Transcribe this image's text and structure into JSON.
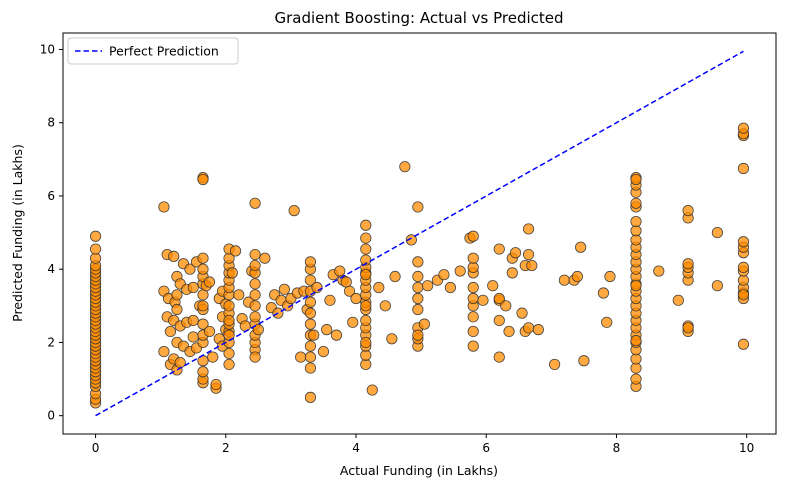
{
  "chart_data": {
    "type": "scatter",
    "title": "Gradient Boosting: Actual vs Predicted",
    "xlabel": "Actual Funding (in Lakhs)",
    "ylabel": "Predicted Funding (in Lakhs)",
    "xlim": [
      -0.5,
      10.45
    ],
    "ylim": [
      -0.5,
      10.45
    ],
    "xticks": [
      0,
      2,
      4,
      6,
      8,
      10
    ],
    "yticks": [
      0,
      2,
      4,
      6,
      8,
      10
    ],
    "grid": false,
    "legend_position": "top-left",
    "colors": {
      "points_fill": "#ff8c00",
      "points_edge": "#333333",
      "reference_line": "#0000ff"
    },
    "reference_line": {
      "name": "Perfect Prediction",
      "style": "dashed",
      "x": [
        0,
        9.95
      ],
      "y": [
        0,
        9.95
      ]
    },
    "series": [
      {
        "x": [
          0,
          0,
          0,
          0,
          0,
          0,
          0,
          0,
          0,
          0,
          0,
          0,
          0,
          0,
          0,
          0,
          0,
          0,
          0,
          0,
          0,
          0,
          0,
          0,
          0,
          0,
          0,
          0,
          0,
          0,
          0,
          0,
          0,
          0,
          0,
          0,
          0,
          0,
          0,
          0,
          1.05,
          1.05,
          1.05,
          1.1,
          1.1,
          1.12,
          1.15,
          1.15,
          1.2,
          1.2,
          1.2,
          1.22,
          1.25,
          1.25,
          1.25,
          1.25,
          1.25,
          1.3,
          1.3,
          1.3,
          1.35,
          1.35,
          1.4,
          1.4,
          1.45,
          1.45,
          1.5,
          1.5,
          1.5,
          1.55,
          1.55,
          1.6,
          1.65,
          1.65,
          1.65,
          1.65,
          1.65,
          1.65,
          1.65,
          1.65,
          1.65,
          1.65,
          1.65,
          1.65,
          1.65,
          1.65,
          1.65,
          1.65,
          1.7,
          1.75,
          1.75,
          1.8,
          1.85,
          1.85,
          1.9,
          1.9,
          1.95,
          1.95,
          1.95,
          2.0,
          2.0,
          2.05,
          2.05,
          2.05,
          2.05,
          2.05,
          2.05,
          2.05,
          2.05,
          2.05,
          2.05,
          2.05,
          2.05,
          2.05,
          2.05,
          2.05,
          2.05,
          2.1,
          2.15,
          2.2,
          2.25,
          2.3,
          2.35,
          2.4,
          2.45,
          2.45,
          2.45,
          2.45,
          2.45,
          2.45,
          2.45,
          2.45,
          2.45,
          2.45,
          2.45,
          2.45,
          2.45,
          2.5,
          2.6,
          2.7,
          2.75,
          2.8,
          2.85,
          2.9,
          2.95,
          3.0,
          3.05,
          3.1,
          3.15,
          3.2,
          3.25,
          3.3,
          3.3,
          3.3,
          3.3,
          3.3,
          3.3,
          3.3,
          3.3,
          3.3,
          3.3,
          3.3,
          3.3,
          3.35,
          3.4,
          3.5,
          3.55,
          3.6,
          3.65,
          3.7,
          3.75,
          3.8,
          3.85,
          3.9,
          3.95,
          4.0,
          4.15,
          4.15,
          4.15,
          4.15,
          4.15,
          4.15,
          4.15,
          4.15,
          4.15,
          4.15,
          4.15,
          4.15,
          4.15,
          4.15,
          4.15,
          4.15,
          4.15,
          4.15,
          4.15,
          4.15,
          4.25,
          4.35,
          4.45,
          4.55,
          4.6,
          4.75,
          4.85,
          4.95,
          4.95,
          4.95,
          4.95,
          4.95,
          4.95,
          4.95,
          4.95,
          4.95,
          4.95,
          5.05,
          5.1,
          5.25,
          5.35,
          5.45,
          5.6,
          5.75,
          5.8,
          5.8,
          5.8,
          5.8,
          5.8,
          5.8,
          5.8,
          5.8,
          5.8,
          5.8,
          5.95,
          6.1,
          6.2,
          6.2,
          6.2,
          6.2,
          6.2,
          6.3,
          6.35,
          6.4,
          6.4,
          6.45,
          6.55,
          6.6,
          6.6,
          6.65,
          6.65,
          6.65,
          6.7,
          6.8,
          7.05,
          7.2,
          7.35,
          7.4,
          7.45,
          7.5,
          7.8,
          7.85,
          7.9,
          8.3,
          8.3,
          8.3,
          8.3,
          8.3,
          8.3,
          8.3,
          8.3,
          8.3,
          8.3,
          8.3,
          8.3,
          8.3,
          8.3,
          8.3,
          8.3,
          8.3,
          8.3,
          8.3,
          8.3,
          8.3,
          8.3,
          8.3,
          8.3,
          8.3,
          8.3,
          8.3,
          8.3,
          8.3,
          8.3,
          8.65,
          8.95,
          9.1,
          9.1,
          9.1,
          9.1,
          9.1,
          9.1,
          9.1,
          9.1,
          9.1,
          9.55,
          9.55,
          9.95,
          9.95,
          9.95,
          9.95,
          9.95,
          9.95,
          9.95,
          9.95,
          9.95,
          9.95,
          9.95,
          9.95,
          9.95,
          9.95,
          9.95
        ],
        "y": [
          0.35,
          0.45,
          0.6,
          0.8,
          0.9,
          1.0,
          1.1,
          1.2,
          1.3,
          1.4,
          1.5,
          1.6,
          1.7,
          1.8,
          1.9,
          2.0,
          2.1,
          2.2,
          2.3,
          2.4,
          2.5,
          2.6,
          2.7,
          2.8,
          2.9,
          3.0,
          3.1,
          3.2,
          3.3,
          3.4,
          3.5,
          3.6,
          3.7,
          3.8,
          3.9,
          4.0,
          4.1,
          4.3,
          4.55,
          4.9,
          5.7,
          3.4,
          1.75,
          2.7,
          4.4,
          3.2,
          1.4,
          2.3,
          4.35,
          2.6,
          1.55,
          3.1,
          3.8,
          3.3,
          2.0,
          1.25,
          2.9,
          3.6,
          1.45,
          2.45,
          4.15,
          1.9,
          2.55,
          3.45,
          4.0,
          1.75,
          2.15,
          3.5,
          2.6,
          1.85,
          4.2,
          3.0,
          6.5,
          6.45,
          0.9,
          1.0,
          1.5,
          2.0,
          2.2,
          2.5,
          2.9,
          3.3,
          3.6,
          3.8,
          4.0,
          4.3,
          1.2,
          3.0,
          3.55,
          2.3,
          3.65,
          1.6,
          0.75,
          0.85,
          3.2,
          2.1,
          2.7,
          1.9,
          3.4,
          3.05,
          2.35,
          1.4,
          1.7,
          2.0,
          2.3,
          2.5,
          2.8,
          3.0,
          3.3,
          3.5,
          3.7,
          3.9,
          4.1,
          4.3,
          4.55,
          2.2,
          2.6,
          3.9,
          4.5,
          3.3,
          2.65,
          2.45,
          3.1,
          3.95,
          5.8,
          1.8,
          2.0,
          2.2,
          2.5,
          2.7,
          3.0,
          3.3,
          3.6,
          3.9,
          4.1,
          4.4,
          1.6,
          2.35,
          4.3,
          2.95,
          3.3,
          2.8,
          3.15,
          3.45,
          3.0,
          3.2,
          5.6,
          3.35,
          1.6,
          3.4,
          2.9,
          0.5,
          1.3,
          1.6,
          1.9,
          2.2,
          2.5,
          2.8,
          3.1,
          3.4,
          3.7,
          4.0,
          4.2,
          2.2,
          3.5,
          1.75,
          2.35,
          3.15,
          3.85,
          2.2,
          3.95,
          3.7,
          3.65,
          3.4,
          2.55,
          3.2,
          1.4,
          1.65,
          1.9,
          2.2,
          2.4,
          2.6,
          2.9,
          3.1,
          3.3,
          3.5,
          3.7,
          3.9,
          4.05,
          4.25,
          4.55,
          4.85,
          5.2,
          2.0,
          3.0,
          3.85,
          0.7,
          3.5,
          3.0,
          2.1,
          3.8,
          6.8,
          4.8,
          1.9,
          2.1,
          2.4,
          2.9,
          3.2,
          3.5,
          3.8,
          4.2,
          5.7,
          2.2,
          2.5,
          3.55,
          3.7,
          3.85,
          3.5,
          3.95,
          4.85,
          1.9,
          2.3,
          2.7,
          3.0,
          3.2,
          3.5,
          3.9,
          4.05,
          4.3,
          4.9,
          3.15,
          3.55,
          1.6,
          2.6,
          3.15,
          3.2,
          4.55,
          3.0,
          2.3,
          3.9,
          4.3,
          4.45,
          2.8,
          2.3,
          4.1,
          5.1,
          2.4,
          4.4,
          4.1,
          2.35,
          1.4,
          3.7,
          3.7,
          3.8,
          4.6,
          1.5,
          3.35,
          2.55,
          3.8,
          0.8,
          1.0,
          1.3,
          1.55,
          1.8,
          2.0,
          2.2,
          2.4,
          2.6,
          2.8,
          3.0,
          3.2,
          3.4,
          3.6,
          3.8,
          4.0,
          4.2,
          4.4,
          4.6,
          4.8,
          5.05,
          5.3,
          5.7,
          5.8,
          6.1,
          6.3,
          6.5,
          6.45,
          2.05,
          3.55,
          3.95,
          3.15,
          2.3,
          2.45,
          3.7,
          3.9,
          4.05,
          4.15,
          5.4,
          5.6,
          2.4,
          5.0,
          3.55,
          1.95,
          3.2,
          3.35,
          3.5,
          3.7,
          3.95,
          4.05,
          4.45,
          4.6,
          4.75,
          6.75,
          7.65,
          7.7,
          7.85,
          3.3
        ]
      }
    ]
  }
}
